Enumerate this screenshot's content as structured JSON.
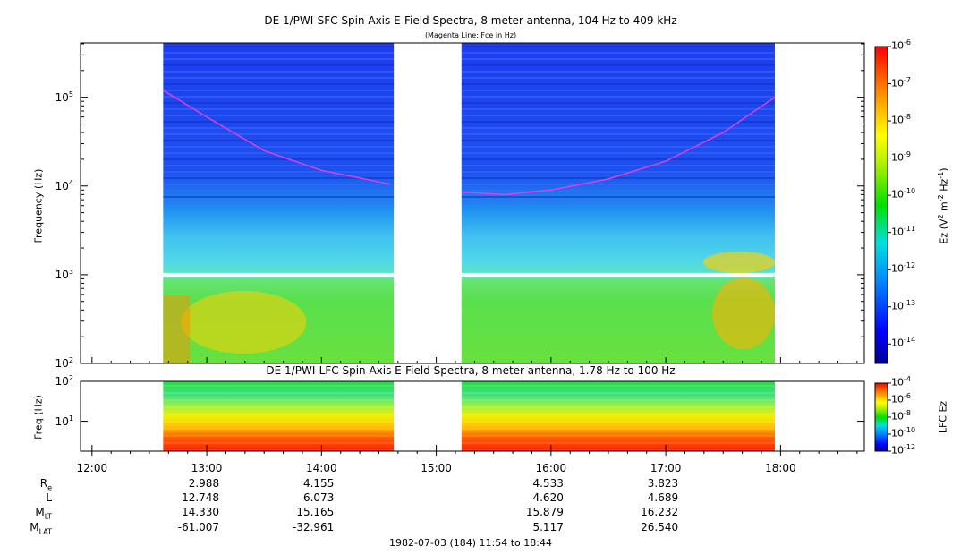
{
  "chart_data": [
    {
      "type": "heatmap",
      "title": "DE 1/PWI-SFC  Spin Axis E-Field Spectra, 8 meter antenna, 104 Hz to 409 kHz",
      "subtitle": "(Magenta Line: Fce in Hz)",
      "ylabel": "Frequency (Hz)",
      "y_scale": "log",
      "ylim": [
        100,
        409000
      ],
      "y_ticks": [
        "10^2",
        "10^3",
        "10^4",
        "10^5"
      ],
      "x_ticks": [
        "12:00",
        "13:00",
        "14:00",
        "15:00",
        "16:00",
        "17:00",
        "18:00"
      ],
      "xlim_hours": [
        11.9,
        18.73
      ],
      "data_intervals_hours": [
        [
          12.62,
          14.63
        ],
        [
          15.22,
          17.95
        ]
      ],
      "colorbar": {
        "label": "Ez (V^2 m^-2 Hz^-1)",
        "ticks": [
          "10^-6",
          "10^-7",
          "10^-8",
          "10^-9",
          "10^-10",
          "10^-11",
          "10^-12",
          "10^-13",
          "10^-14"
        ],
        "range": [
          3e-15,
          1e-06
        ]
      },
      "fce_line": {
        "color": "#e040e0",
        "points": [
          [
            12.62,
            120000
          ],
          [
            13.0,
            60000
          ],
          [
            13.5,
            25000
          ],
          [
            14.0,
            15000
          ],
          [
            14.6,
            10500
          ],
          [
            15.22,
            8500
          ],
          [
            15.6,
            8000
          ],
          [
            16.0,
            9000
          ],
          [
            16.5,
            12000
          ],
          [
            17.0,
            19000
          ],
          [
            17.5,
            40000
          ],
          [
            17.95,
            100000
          ]
        ]
      }
    },
    {
      "type": "heatmap",
      "title": "DE 1/PWI-LFC  Spin Axis E-Field Spectra, 8 meter antenna, 1.78 Hz to 100 Hz",
      "ylabel": "Freq (Hz)",
      "y_scale": "log",
      "ylim": [
        1.78,
        100
      ],
      "y_ticks": [
        "10^1",
        "10^2"
      ],
      "colorbar": {
        "label": "LFC Ez",
        "ticks": [
          "10^-4",
          "10^-6",
          "10^-8",
          "10^-10",
          "10^-12"
        ],
        "range": [
          1e-12,
          0.0001
        ]
      }
    }
  ],
  "ephemeris": {
    "rows": [
      {
        "label": "R",
        "sub": "e",
        "values": {
          "13:00": "2.988",
          "14:00": "4.155",
          "16:00": "4.533",
          "17:00": "3.823"
        }
      },
      {
        "label": "L",
        "sub": "",
        "values": {
          "13:00": "12.748",
          "14:00": "6.073",
          "16:00": "4.620",
          "17:00": "4.689"
        }
      },
      {
        "label": "M",
        "sub": "LT",
        "values": {
          "13:00": "14.330",
          "14:00": "15.165",
          "16:00": "15.879",
          "17:00": "16.232"
        }
      },
      {
        "label": "M",
        "sub": "LAT",
        "values": {
          "13:00": "-61.007",
          "14:00": "-32.961",
          "16:00": "5.117",
          "17:00": "26.540"
        }
      }
    ]
  },
  "footer": "1982-07-03 (184) 11:54 to 18:44"
}
